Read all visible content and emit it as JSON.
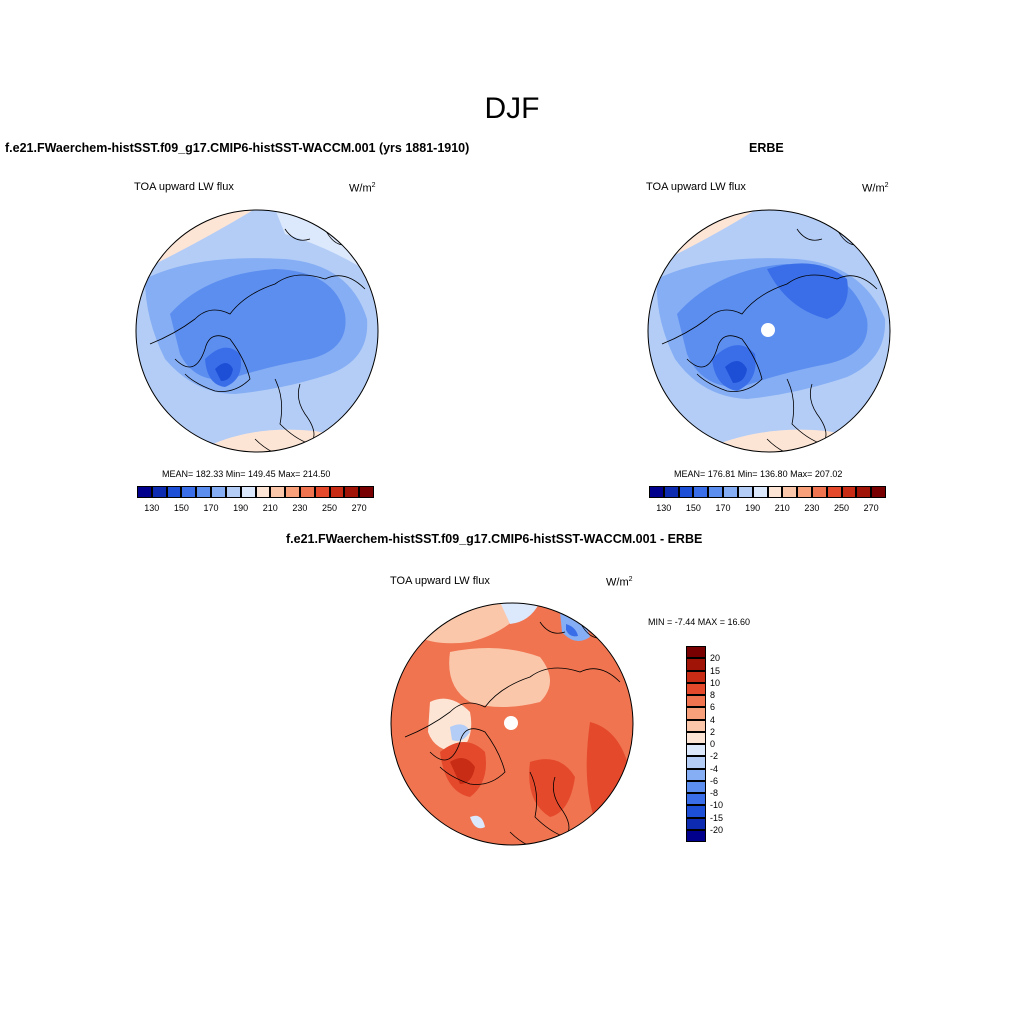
{
  "figure": {
    "title": "DJF",
    "panels": [
      {
        "id": "model",
        "title": "f.e21.FWaerchem-histSST.f09_g17.CMIP6-histSST-WACCM.001 (yrs 1881-1910)",
        "variable": "TOA upward LW flux",
        "units_base": "W/m",
        "units_exp": "2",
        "stats": "MEAN= 182.33  Min= 149.45  Max= 214.50",
        "mean": 182.33,
        "min": 149.45,
        "max": 214.5
      },
      {
        "id": "obs",
        "title": "ERBE",
        "variable": "TOA upward LW flux",
        "units_base": "W/m",
        "units_exp": "2",
        "stats": "MEAN= 176.81  Min= 136.80  Max= 207.02",
        "mean": 176.81,
        "min": 136.8,
        "max": 207.02
      },
      {
        "id": "diff",
        "title": "f.e21.FWaerchem-histSST.f09_g17.CMIP6-histSST-WACCM.001 - ERBE",
        "variable": "TOA upward LW flux",
        "units_base": "W/m",
        "units_exp": "2",
        "stats": "MIN =  -7.44 MAX =  16.60",
        "min": -7.44,
        "max": 16.6
      }
    ],
    "colorbar_abs": {
      "tick_labels": [
        "130",
        "150",
        "170",
        "190",
        "210",
        "230",
        "250",
        "270"
      ],
      "colors": [
        "#00008c",
        "#0d2bb0",
        "#1c4fd6",
        "#3a6ee8",
        "#5c8ef0",
        "#86aef4",
        "#b3cdf7",
        "#dce8fb",
        "#fde5d6",
        "#fbc7ab",
        "#f7a07a",
        "#f07450",
        "#e4492c",
        "#c92c14",
        "#a01408",
        "#780000"
      ]
    },
    "colorbar_diff": {
      "tick_labels": [
        "20",
        "15",
        "10",
        "8",
        "6",
        "4",
        "2",
        "0",
        "-2",
        "-4",
        "-6",
        "-8",
        "-10",
        "-15",
        "-20"
      ],
      "colors": [
        "#780000",
        "#a01408",
        "#c92c14",
        "#e4492c",
        "#f07450",
        "#f7a07a",
        "#fbc7ab",
        "#fde5d6",
        "#dce8fb",
        "#b3cdf7",
        "#86aef4",
        "#5c8ef0",
        "#3a6ee8",
        "#1c4fd6",
        "#0d2bb0",
        "#00008c"
      ]
    }
  }
}
